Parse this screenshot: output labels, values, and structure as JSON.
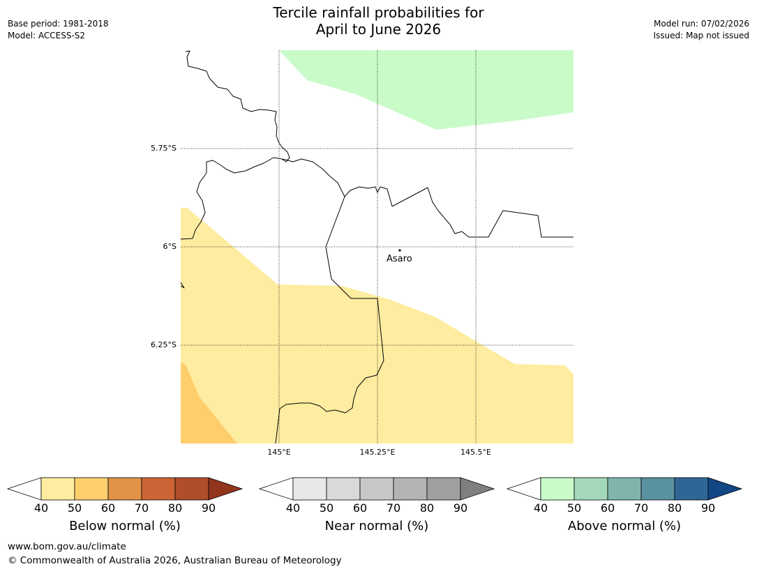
{
  "header": {
    "title_line1": "Tercile rainfall probabilities for",
    "title_line2": "April to June 2026",
    "base_period": "Base period: 1981-2018",
    "model": "Model: ACCESS-S2",
    "model_run": "Model run: 07/02/2026",
    "issued": "Issued: Map not issued"
  },
  "map": {
    "lat_labels": [
      "5.75°S",
      "6°S",
      "6.25°S"
    ],
    "lon_labels": [
      "145°E",
      "145.25°E",
      "145.5°E"
    ],
    "place": {
      "name": "Asaro"
    },
    "colors": {
      "above_40_50": "#c9fbc9",
      "below_40_50": "#feeca0",
      "below_50_60": "#fece6c"
    }
  },
  "legend": {
    "ticks": [
      "40",
      "50",
      "60",
      "70",
      "80",
      "90"
    ],
    "colorbars": [
      {
        "title": "Below normal (%)",
        "low_color": "#ffffff",
        "colors": [
          "#feeca0",
          "#fece6c",
          "#e09346",
          "#cc6435",
          "#b04d2a"
        ],
        "high_color": "#92351d"
      },
      {
        "title": "Near normal (%)",
        "low_color": "#ffffff",
        "colors": [
          "#e8e8e8",
          "#d9d9d9",
          "#c8c8c8",
          "#b4b4b4",
          "#a0a0a0"
        ],
        "high_color": "#808080"
      },
      {
        "title": "Above normal (%)",
        "low_color": "#ffffff",
        "colors": [
          "#c9fbc9",
          "#a4d8bb",
          "#80b5ae",
          "#5a91a0",
          "#306695"
        ],
        "high_color": "#124685"
      }
    ]
  },
  "footer": {
    "url": "www.bom.gov.au/climate",
    "copyright": "© Commonwealth of Australia 2026, Australian Bureau of Meteorology"
  }
}
